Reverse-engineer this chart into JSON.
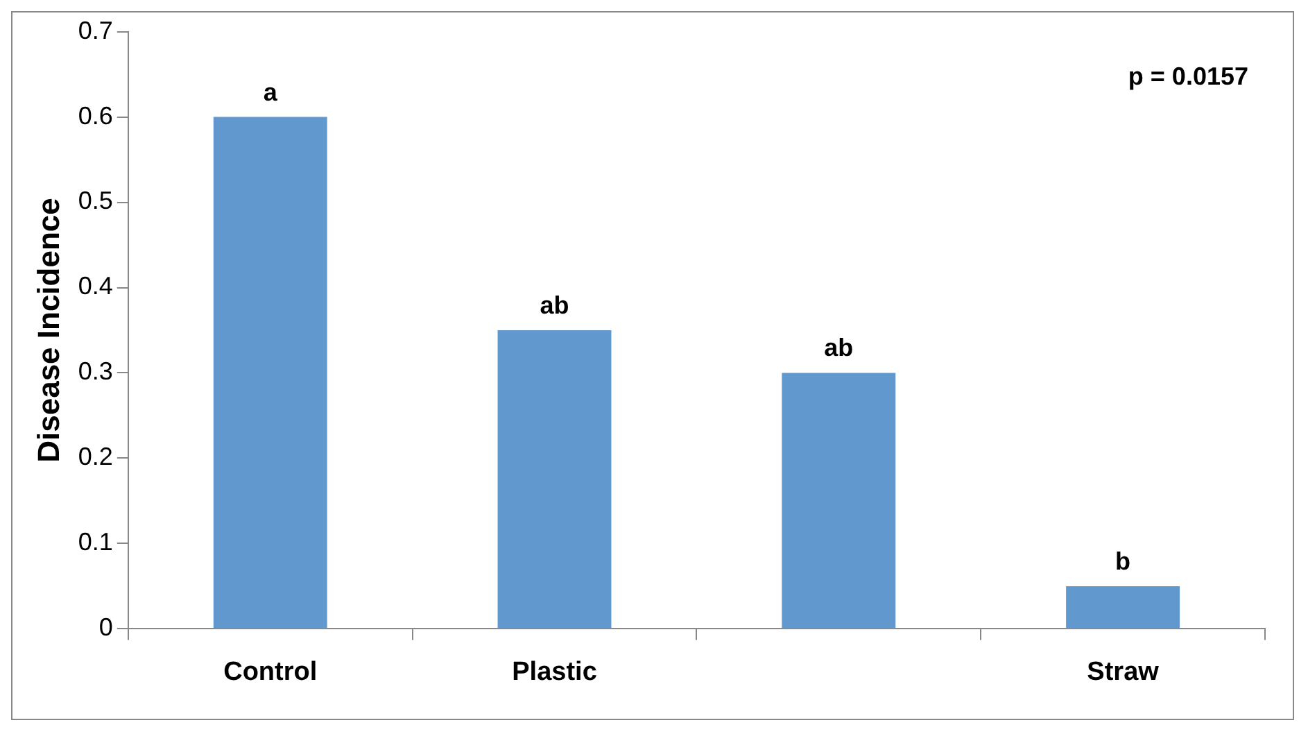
{
  "chart_data": {
    "type": "bar",
    "ylabel": "Disease Incidence",
    "categories": [
      "Control",
      "Plastic",
      null,
      "Straw"
    ],
    "values": [
      0.6,
      0.35,
      0.3,
      0.05
    ],
    "color": "#6198cd",
    "value_labels": [
      "a",
      "ab",
      "ab",
      "b"
    ],
    "ylim": [
      0,
      0.7
    ],
    "yticks": [
      0,
      0.1,
      0.2,
      0.3,
      0.4,
      0.5,
      0.6,
      0.7
    ],
    "grid": false,
    "legend": false,
    "annotations": [
      "p = 0.0157"
    ]
  }
}
